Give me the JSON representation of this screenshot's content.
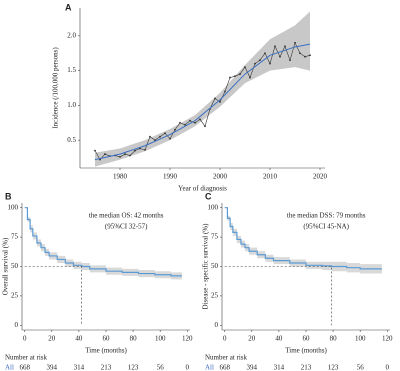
{
  "chart_data": [
    {
      "type": "line",
      "panel": "A",
      "xlabel": "Year of diagnosis",
      "ylabel": "Incidence (/100,000 persons)",
      "x": [
        1975,
        1976,
        1977,
        1978,
        1979,
        1980,
        1981,
        1982,
        1983,
        1984,
        1985,
        1986,
        1987,
        1988,
        1989,
        1990,
        1991,
        1992,
        1993,
        1994,
        1995,
        1996,
        1997,
        1998,
        1999,
        2000,
        2001,
        2002,
        2003,
        2004,
        2005,
        2006,
        2007,
        2008,
        2009,
        2010,
        2011,
        2012,
        2013,
        2014,
        2015,
        2016,
        2017,
        2018
      ],
      "series": [
        {
          "color": "#333333",
          "values": [
            0.35,
            0.22,
            0.3,
            0.27,
            0.28,
            0.26,
            0.3,
            0.28,
            0.35,
            0.38,
            0.36,
            0.55,
            0.5,
            0.55,
            0.6,
            0.52,
            0.65,
            0.75,
            0.72,
            0.78,
            0.75,
            0.8,
            0.7,
            0.95,
            1.1,
            1.05,
            1.2,
            1.4,
            1.42,
            1.45,
            1.55,
            1.4,
            1.6,
            1.65,
            1.75,
            1.6,
            1.85,
            1.7,
            1.85,
            1.65,
            1.9,
            1.75,
            1.7,
            1.72
          ]
        }
      ],
      "fit": {
        "color": "#3a6fc4",
        "x": [
          1975,
          1980,
          1985,
          1990,
          1995,
          2000,
          2005,
          2010,
          2015,
          2018
        ],
        "values": [
          0.22,
          0.3,
          0.42,
          0.58,
          0.78,
          1.08,
          1.45,
          1.72,
          1.84,
          1.88
        ]
      },
      "band": {
        "color": "#c8c8c8",
        "x": [
          1975,
          1980,
          1985,
          1990,
          1995,
          2000,
          2005,
          2010,
          2015,
          2018
        ],
        "lower": [
          0.12,
          0.22,
          0.34,
          0.5,
          0.7,
          0.98,
          1.32,
          1.5,
          1.55,
          1.5
        ],
        "upper": [
          0.32,
          0.38,
          0.5,
          0.66,
          0.86,
          1.18,
          1.58,
          1.95,
          2.15,
          2.35
        ]
      },
      "xlim": [
        1972,
        2021
      ],
      "ylim": [
        0.1,
        2.4
      ],
      "xticks": [
        1980,
        1990,
        2000,
        2010,
        2020
      ],
      "yticks": [
        0.5,
        {
          "value": 1,
          "label": "1.0"
        },
        1.5,
        {
          "value": 2,
          "label": "2.0"
        }
      ]
    },
    {
      "type": "step",
      "panel": "B",
      "annotation": [
        "the median OS: 42 months",
        "(95%CI 32-57)"
      ],
      "xlabel": "Time (months)",
      "ylabel": "Overall survival (%)",
      "color": "#5b9bd5",
      "band_color": "#d9d9d9",
      "x": [
        0,
        2,
        4,
        6,
        9,
        12,
        15,
        18,
        24,
        30,
        36,
        42,
        48,
        60,
        72,
        84,
        96,
        108,
        116
      ],
      "values": [
        100,
        90,
        82,
        76,
        70,
        66,
        62,
        59,
        56,
        53,
        51,
        50,
        48,
        46,
        45,
        44,
        43,
        42,
        42
      ],
      "ci_lower": [
        100,
        88,
        79,
        73,
        67,
        63,
        59,
        56,
        53,
        50,
        48,
        47,
        45,
        43,
        42,
        41,
        40,
        39,
        38
      ],
      "ci_upper": [
        100,
        92,
        85,
        79,
        73,
        69,
        65,
        62,
        59,
        56,
        54,
        53,
        51,
        49,
        48,
        47,
        46,
        45,
        46
      ],
      "median": {
        "x": 42,
        "y": 50
      },
      "xlim": [
        -2,
        122
      ],
      "ylim": [
        -4,
        104
      ],
      "xticks": [
        0,
        20,
        40,
        60,
        80,
        100,
        120
      ],
      "yticks": [
        0,
        25,
        50,
        75,
        100
      ],
      "risk": {
        "title": "Number at risk",
        "label": "All",
        "values": [
          668,
          394,
          314,
          213,
          123,
          56,
          0
        ]
      }
    },
    {
      "type": "step",
      "panel": "C",
      "annotation": [
        "the median DSS: 79 months",
        "(95%CI 45-NA)"
      ],
      "xlabel": "Time (months)",
      "ylabel": "Disease - specific survival (%)",
      "color": "#5b9bd5",
      "band_color": "#d9d9d9",
      "x": [
        0,
        2,
        4,
        6,
        9,
        12,
        15,
        18,
        24,
        30,
        36,
        48,
        60,
        72,
        79,
        90,
        100,
        116
      ],
      "values": [
        100,
        91,
        84,
        79,
        73,
        69,
        66,
        63,
        60,
        57,
        55,
        53,
        51,
        50.5,
        50,
        49,
        48,
        48
      ],
      "ci_lower": [
        100,
        89,
        81,
        76,
        70,
        66,
        63,
        60,
        57,
        54,
        52,
        50,
        48,
        47,
        46,
        45,
        44,
        43
      ],
      "ci_upper": [
        100,
        93,
        87,
        82,
        76,
        72,
        69,
        66,
        63,
        60,
        58,
        56,
        54,
        54,
        54,
        53,
        52,
        53
      ],
      "median": {
        "x": 79,
        "y": 50
      },
      "xlim": [
        -2,
        122
      ],
      "ylim": [
        -4,
        104
      ],
      "xticks": [
        0,
        20,
        40,
        60,
        80,
        100,
        120
      ],
      "yticks": [
        0,
        25,
        50,
        75,
        100
      ],
      "risk": {
        "title": "Number at risk",
        "label": "All",
        "values": [
          668,
          394,
          314,
          213,
          123,
          56,
          0
        ]
      }
    }
  ]
}
